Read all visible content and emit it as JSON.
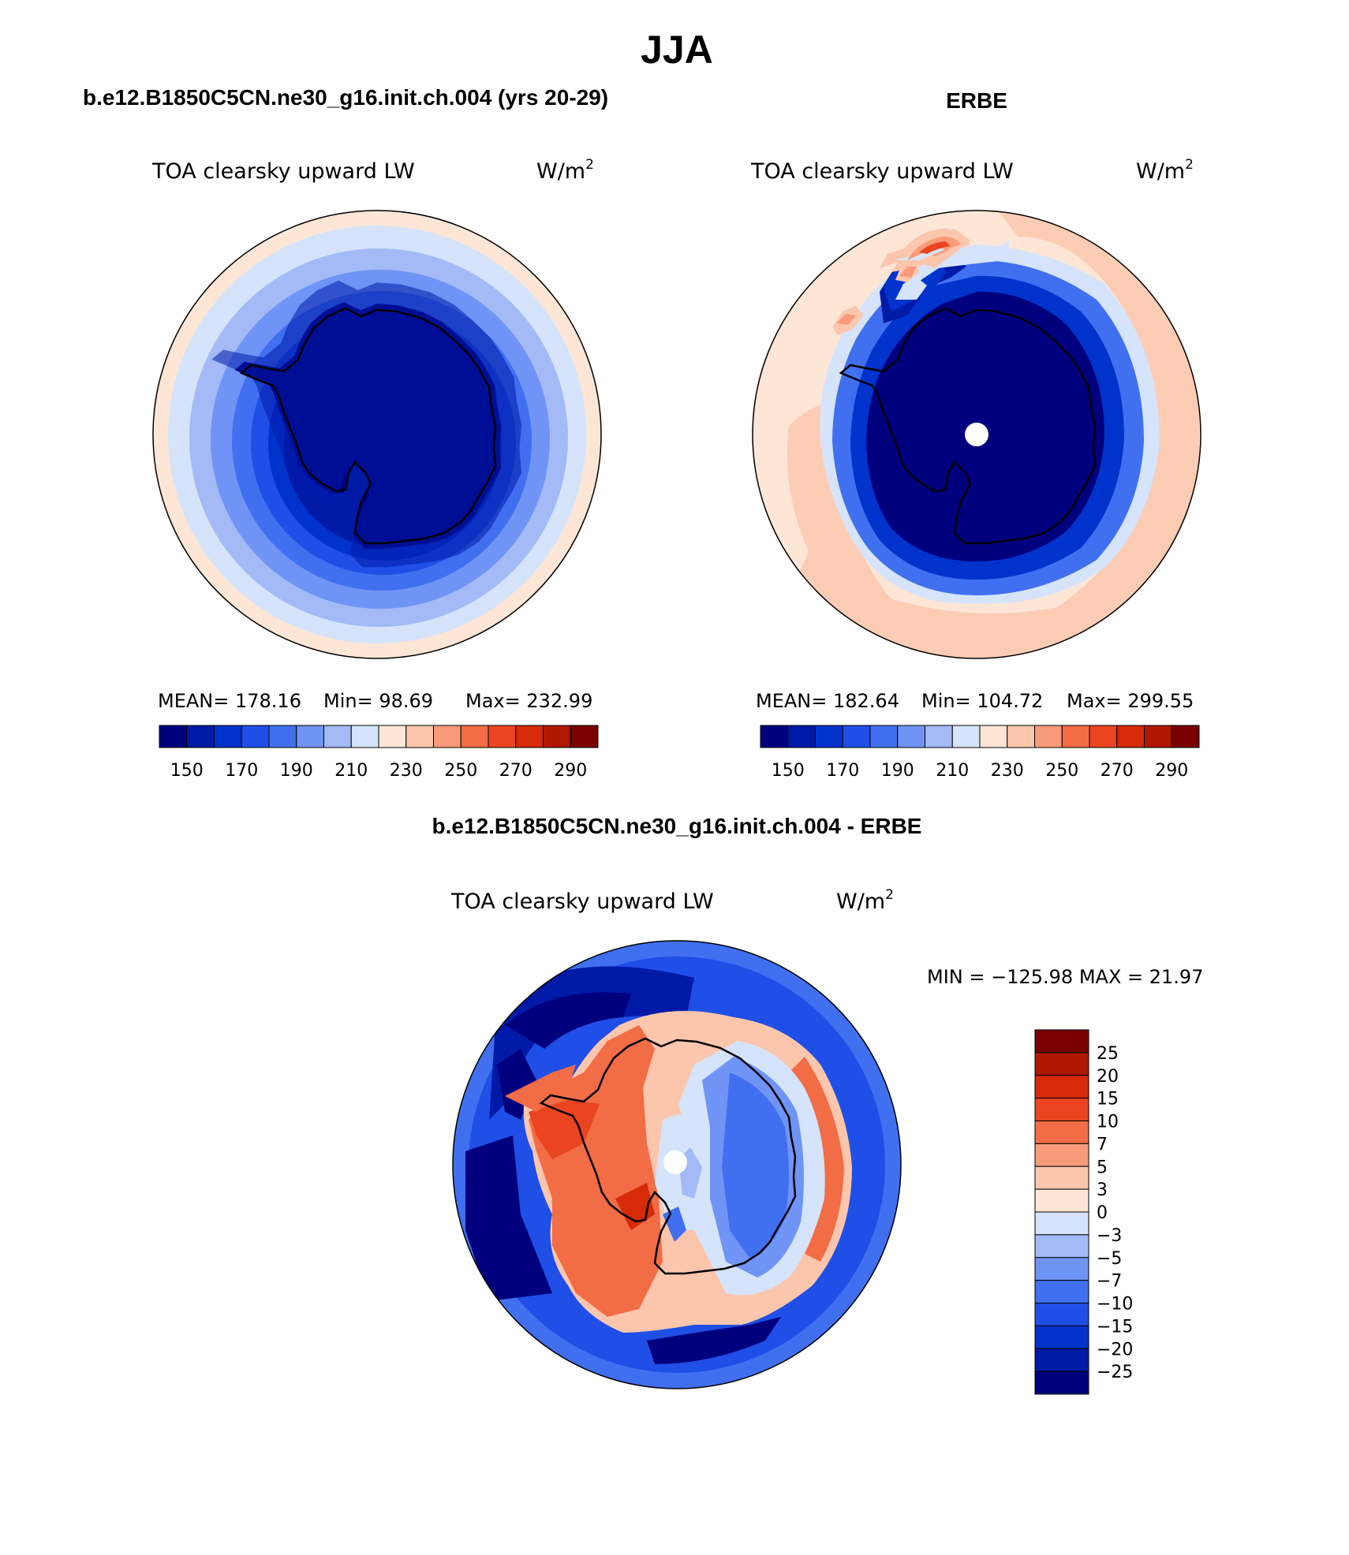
{
  "figure": {
    "season": "JJA"
  },
  "panels": [
    {
      "id": "model",
      "header": "b.e12.B1850C5CN.ne30_g16.init.ch.004 (yrs 20-29)",
      "variable": "TOA clearsky upward LW",
      "units_base": "W/m",
      "units_exp": "2",
      "stats": {
        "mean": "MEAN=  178.16",
        "min": "Min=   98.69",
        "max": "Max=  232.99"
      },
      "colorbar": {
        "colors": [
          "#00007f",
          "#001aa8",
          "#0033cc",
          "#1f4fe6",
          "#4070f0",
          "#6f94f5",
          "#a3baf7",
          "#d5e4fb",
          "#fde6d6",
          "#fcc6ad",
          "#f79b7a",
          "#f26c45",
          "#eb4420",
          "#d62a08",
          "#b01800",
          "#7a0000"
        ],
        "tick_labels": [
          "150",
          "170",
          "190",
          "210",
          "230",
          "250",
          "270",
          "290"
        ]
      },
      "map_colors": [
        "#fde6d6",
        "#d5e4fb",
        "#a3baf7",
        "#6f94f5",
        "#4070f0",
        "#1f4fe6",
        "#0033cc",
        "#001aa8",
        "#00007f"
      ]
    },
    {
      "id": "obs",
      "header": "ERBE",
      "variable": "TOA clearsky upward LW",
      "units_base": "W/m",
      "units_exp": "2",
      "stats": {
        "mean": "MEAN=  182.64",
        "min": "Min=  104.72",
        "max": "Max=  299.55"
      },
      "colorbar": {
        "colors": [
          "#00007f",
          "#001aa8",
          "#0033cc",
          "#1f4fe6",
          "#4070f0",
          "#6f94f5",
          "#a3baf7",
          "#d5e4fb",
          "#fde6d6",
          "#fcc6ad",
          "#f79b7a",
          "#f26c45",
          "#eb4420",
          "#d62a08",
          "#b01800",
          "#7a0000"
        ],
        "tick_labels": [
          "150",
          "170",
          "190",
          "210",
          "230",
          "250",
          "270",
          "290"
        ]
      }
    },
    {
      "id": "diff",
      "header": "b.e12.B1850C5CN.ne30_g16.init.ch.004 - ERBE",
      "variable": "TOA clearsky upward LW",
      "units_base": "W/m",
      "units_exp": "2",
      "minmax": "MIN = −125.98 MAX =   21.97",
      "colorbar": {
        "colors": [
          "#7a0000",
          "#b01800",
          "#d62a08",
          "#eb4420",
          "#f26c45",
          "#f79b7a",
          "#fcc6ad",
          "#fde6d6",
          "#d5e4fb",
          "#a3baf7",
          "#6f94f5",
          "#4070f0",
          "#1f4fe6",
          "#0033cc",
          "#001aa8",
          "#00007f"
        ],
        "tick_labels": [
          "25",
          "20",
          "15",
          "10",
          "7",
          "5",
          "3",
          "0",
          "−3",
          "−5",
          "−7",
          "−10",
          "−15",
          "−20",
          "−25"
        ]
      }
    }
  ]
}
